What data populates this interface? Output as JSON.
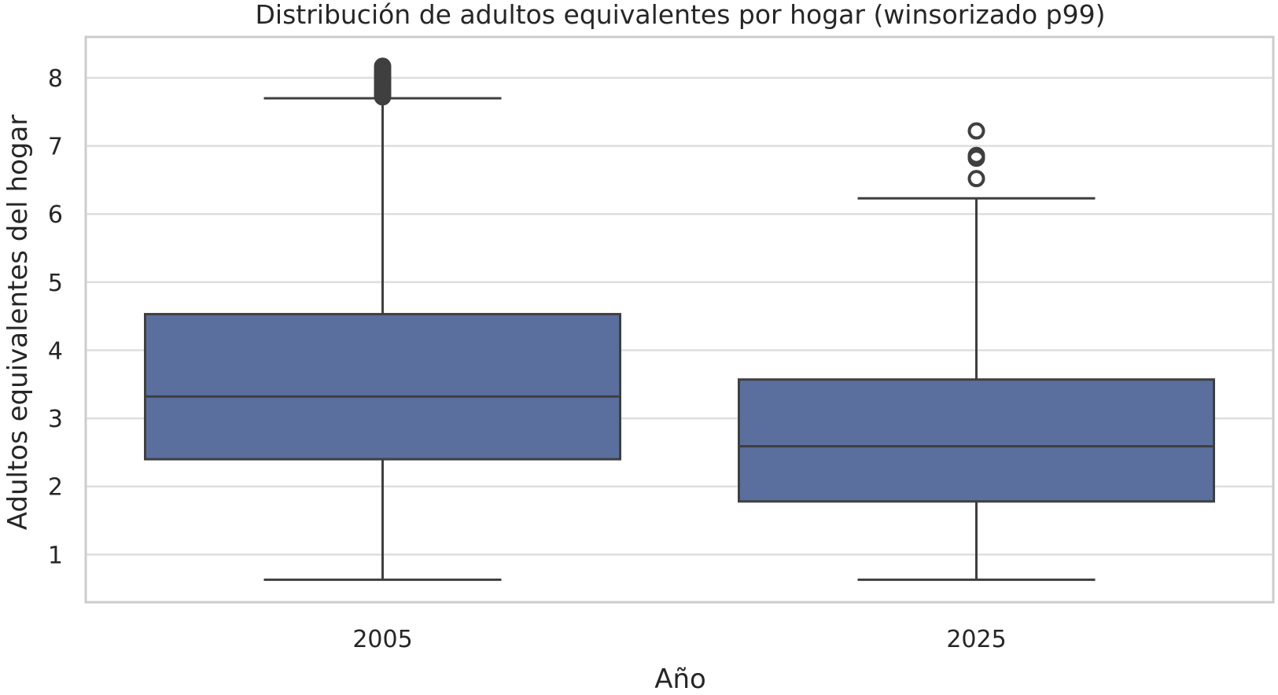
{
  "chart_data": {
    "type": "boxplot",
    "title": "Distribución de adultos equivalentes por hogar (winsorizado p99)",
    "xlabel": "Año",
    "ylabel": "Adultos equivalentes del hogar",
    "ylim": [
      0.3,
      8.6
    ],
    "yticks": [
      1,
      2,
      3,
      4,
      5,
      6,
      7,
      8
    ],
    "grid": true,
    "categories": [
      "2005",
      "2025"
    ],
    "boxes": [
      {
        "category": "2005",
        "whisker_low": 0.63,
        "q1": 2.4,
        "median": 3.32,
        "q3": 4.53,
        "whisker_high": 7.7,
        "outliers": [
          7.72,
          7.75,
          7.78,
          7.82,
          7.86,
          7.9,
          7.94,
          7.98,
          8.02,
          8.06,
          8.1,
          8.14,
          8.17
        ]
      },
      {
        "category": "2025",
        "whisker_low": 0.63,
        "q1": 1.78,
        "median": 2.59,
        "q3": 3.57,
        "whisker_high": 6.23,
        "outliers": [
          6.52,
          6.82,
          6.86,
          7.22
        ]
      }
    ],
    "colors": {
      "box_fill": "#5a6f9e",
      "line": "#3f3f3f",
      "grid": "#dedede",
      "frame": "#cccccc"
    }
  }
}
